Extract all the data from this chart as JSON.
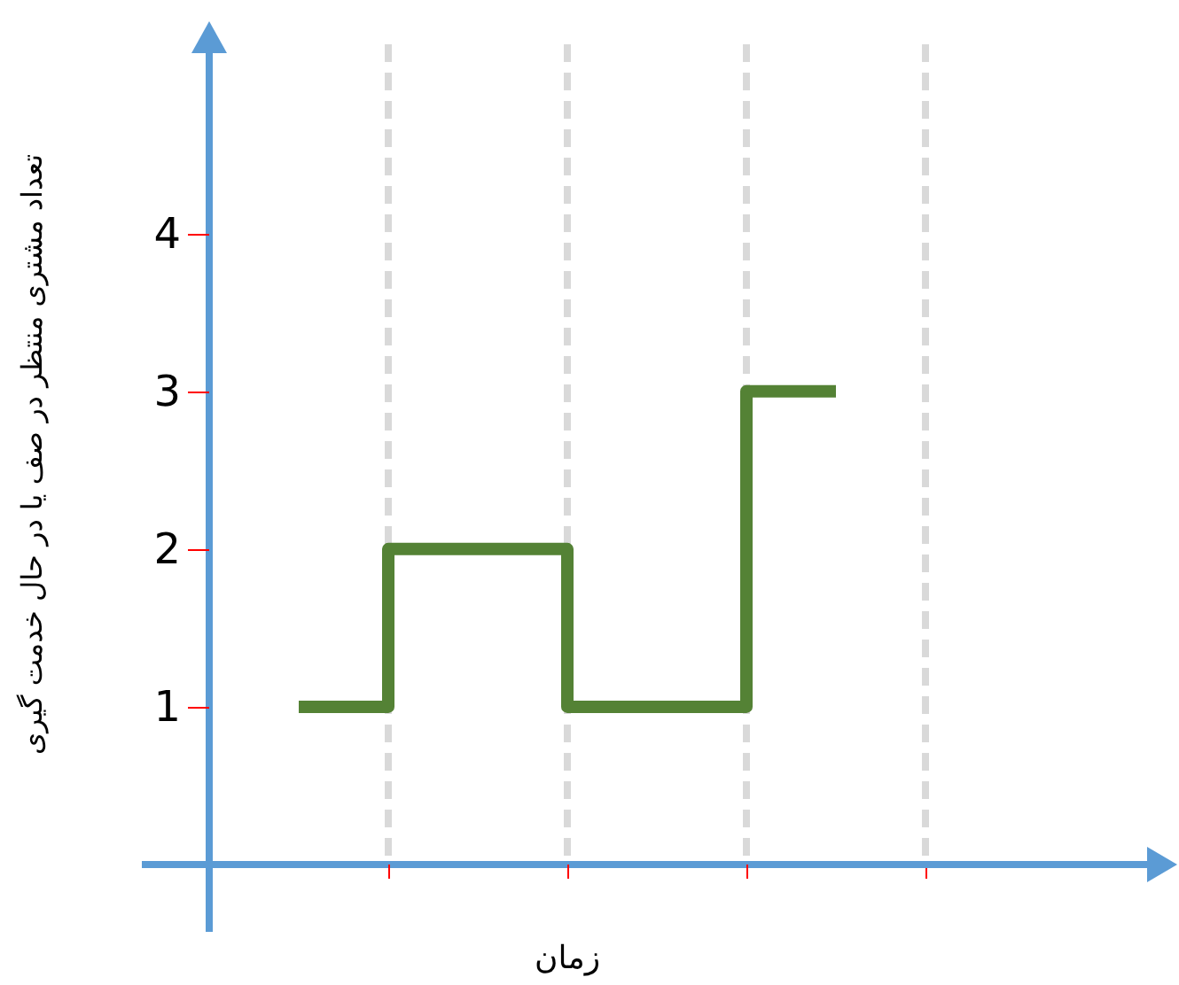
{
  "chart_data": {
    "type": "step",
    "xlabel": "زمان",
    "ylabel": "تعداد مشتری منتظر در صف یا در حال خدمت گیری",
    "categories": [
      null,
      null,
      null,
      null
    ],
    "values": [
      1,
      2,
      1,
      3
    ],
    "color": "#548235",
    "ylim": [
      0,
      5.2
    ],
    "yticks": [
      1,
      2,
      3,
      4
    ],
    "grid": "x"
  }
}
